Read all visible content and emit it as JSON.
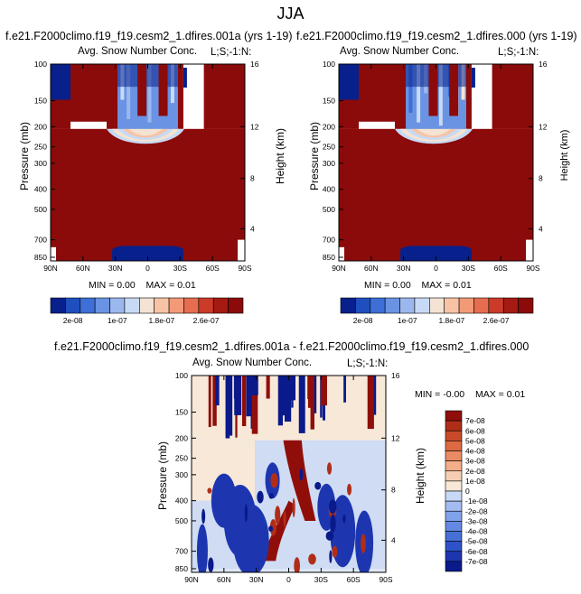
{
  "title": "JJA",
  "colors": {
    "level_palette_12": [
      "#08208c",
      "#1f4fbf",
      "#3d6fd6",
      "#6a93e3",
      "#9bb8ee",
      "#c7daf5",
      "#f4e3d2",
      "#f7c3a4",
      "#f29a77",
      "#e66d4f",
      "#cc3b2a",
      "#a51a12",
      "#8b0a0a"
    ],
    "diff_palette_16": [
      "#0a1a8a",
      "#1d36b0",
      "#2e52c9",
      "#4670d8",
      "#6489e2",
      "#80a2ea",
      "#a2bbf1",
      "#c8d8f7",
      "#f7e8d8",
      "#f6cfb2",
      "#f2ae88",
      "#ea8c63",
      "#de6a43",
      "#c94a2a",
      "#b02e18",
      "#900e0a"
    ]
  },
  "panels": [
    {
      "id": "panel-left",
      "case_title": "f.e21.F2000climo.f19_f19.cesm2_1.dfires.001a (yrs 1-19)",
      "left_label": "Avg. Snow Number Conc.",
      "right_label": "L;S;-1:N:",
      "ylabel": "Pressure (mb)",
      "ylabel_right": "Height (km)",
      "min_label": "MIN =",
      "min_value": "0.00",
      "max_label": "MAX =",
      "max_value": "0.01"
    },
    {
      "id": "panel-right",
      "case_title": "f.e21.F2000climo.f19_f19.cesm2_1.dfires.000 (yrs 1-19)",
      "left_label": "Avg. Snow Number Conc.",
      "right_label": "L;S;-1:N:",
      "ylabel": "Pressure (mb)",
      "ylabel_right": "Height (km)",
      "min_label": "MIN =",
      "min_value": "0.00",
      "max_label": "MAX =",
      "max_value": "0.01"
    },
    {
      "id": "panel-diff",
      "case_title": "f.e21.F2000climo.f19_f19.cesm2_1.dfires.001a - f.e21.F2000climo.f19_f19.cesm2_1.dfires.000",
      "left_label": "Avg. Snow Number Conc.",
      "right_label": "L;S;-1:N:",
      "ylabel": "Pressure (mb)",
      "ylabel_right": "Height (km)",
      "min_label": "MIN =",
      "min_value": "-0.00",
      "max_label": "MAX =",
      "max_value": "0.01"
    }
  ],
  "chart_data": [
    {
      "type": "heatmap",
      "title": "Avg. Snow Number Conc.",
      "subtitle": "f.e21.F2000climo.f19_f19.cesm2_1.dfires.001a (yrs 1-19)",
      "x_ticks": [
        "90N",
        "60N",
        "30N",
        "0",
        "30S",
        "60S",
        "90S"
      ],
      "x_values": [
        90,
        60,
        30,
        0,
        -30,
        -60,
        -90
      ],
      "y_ticks": [
        "100",
        "150",
        "200",
        "250",
        "300",
        "400",
        "500",
        "700",
        "850"
      ],
      "y_values": [
        100,
        150,
        200,
        250,
        300,
        400,
        500,
        700,
        850
      ],
      "y2_ticks": [
        "16",
        "12",
        "8",
        "4"
      ],
      "y2_values": [
        16,
        12,
        8,
        4
      ],
      "colorbar_labels": [
        "2e-08",
        "1e-07",
        "1.8e-07",
        "2.6e-07"
      ]
    },
    {
      "type": "heatmap",
      "title": "Avg. Snow Number Conc.",
      "subtitle": "f.e21.F2000climo.f19_f19.cesm2_1.dfires.000 (yrs 1-19)",
      "x_ticks": [
        "90N",
        "60N",
        "30N",
        "0",
        "30S",
        "60S",
        "90S"
      ],
      "x_values": [
        90,
        60,
        30,
        0,
        -30,
        -60,
        -90
      ],
      "y_ticks": [
        "100",
        "150",
        "200",
        "250",
        "300",
        "400",
        "500",
        "700",
        "850"
      ],
      "y_values": [
        100,
        150,
        200,
        250,
        300,
        400,
        500,
        700,
        850
      ],
      "y2_ticks": [
        "16",
        "12",
        "8",
        "4"
      ],
      "y2_values": [
        16,
        12,
        8,
        4
      ],
      "colorbar_labels": [
        "2e-08",
        "1e-07",
        "1.8e-07",
        "2.6e-07"
      ]
    },
    {
      "type": "heatmap",
      "title": "Avg. Snow Number Conc.",
      "subtitle": "f.e21.F2000climo.f19_f19.cesm2_1.dfires.001a - f.e21.F2000climo.f19_f19.cesm2_1.dfires.000",
      "x_ticks": [
        "90N",
        "60N",
        "30N",
        "0",
        "30S",
        "60S",
        "90S"
      ],
      "x_values": [
        90,
        60,
        30,
        0,
        -30,
        -60,
        -90
      ],
      "y_ticks": [
        "100",
        "150",
        "200",
        "250",
        "300",
        "400",
        "500",
        "700",
        "850"
      ],
      "y_values": [
        100,
        150,
        200,
        250,
        300,
        400,
        500,
        700,
        850
      ],
      "y2_ticks": [
        "16",
        "12",
        "8",
        "4"
      ],
      "y2_values": [
        16,
        12,
        8,
        4
      ],
      "colorbar_labels": [
        "7e-08",
        "6e-08",
        "5e-08",
        "4e-08",
        "3e-08",
        "2e-08",
        "1e-08",
        "0",
        "-1e-08",
        "-2e-08",
        "-3e-08",
        "-4e-08",
        "-5e-08",
        "-6e-08",
        "-7e-08"
      ]
    }
  ]
}
